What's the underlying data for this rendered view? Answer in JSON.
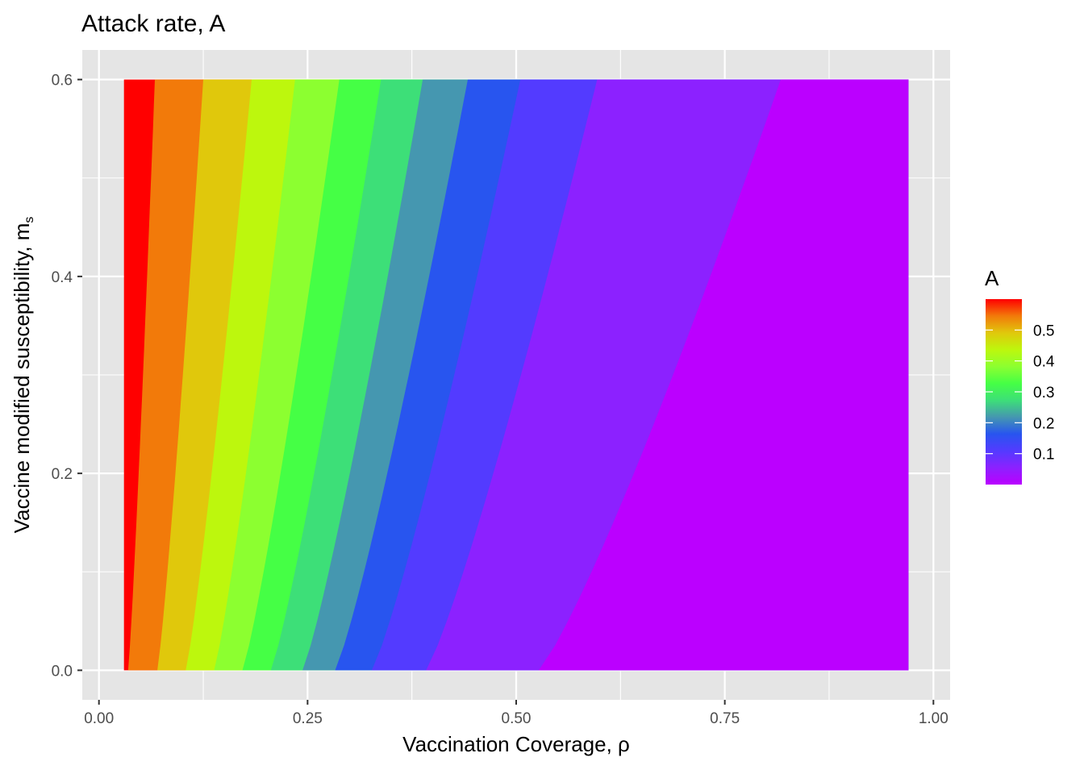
{
  "chart_data": {
    "type": "contour",
    "title": "Attack rate, A",
    "xlabel": "Vaccination Coverage,  ρ",
    "ylabel_main": "Vaccine modified susceptibility, m",
    "ylabel_sub": "s",
    "xlim": [
      -0.02,
      1.02
    ],
    "ylim": [
      -0.03,
      0.63
    ],
    "x_ticks": [
      0.0,
      0.25,
      0.5,
      0.75,
      1.0
    ],
    "x_tick_labels": [
      "0.00",
      "0.25",
      "0.50",
      "0.75",
      "1.00"
    ],
    "y_ticks": [
      0.0,
      0.2,
      0.4,
      0.6
    ],
    "y_tick_labels": [
      "0.0",
      "0.2",
      "0.4",
      "0.6"
    ],
    "grid": true,
    "data_extent": {
      "x": [
        0.03,
        0.97
      ],
      "y": [
        0.0,
        0.6
      ]
    },
    "bands": [
      {
        "color": "#ff0000",
        "x_at_y0": 0.03,
        "x_at_y06": 0.03
      },
      {
        "color": "#f27a0a",
        "x_at_y0": 0.035,
        "x_at_y06": 0.067
      },
      {
        "color": "#e0c80c",
        "x_at_y0": 0.07,
        "x_at_y06": 0.125
      },
      {
        "color": "#bdf70d",
        "x_at_y0": 0.104,
        "x_at_y06": 0.183
      },
      {
        "color": "#8cff30",
        "x_at_y0": 0.138,
        "x_at_y06": 0.235
      },
      {
        "color": "#45ff45",
        "x_at_y0": 0.172,
        "x_at_y06": 0.288
      },
      {
        "color": "#3ddf78",
        "x_at_y0": 0.206,
        "x_at_y06": 0.338
      },
      {
        "color": "#4597b0",
        "x_at_y0": 0.244,
        "x_at_y06": 0.388
      },
      {
        "color": "#2855ef",
        "x_at_y0": 0.283,
        "x_at_y06": 0.442
      },
      {
        "color": "#533bff",
        "x_at_y0": 0.327,
        "x_at_y06": 0.505
      },
      {
        "color": "#8c21ff",
        "x_at_y0": 0.392,
        "x_at_y06": 0.597
      },
      {
        "color": "#bb00ff",
        "x_at_y0": 0.527,
        "x_at_y06": 0.817
      }
    ],
    "legend": {
      "title": "A",
      "position": "right",
      "range": [
        0.0,
        0.6
      ],
      "gradient_colors": [
        "#bb00ff",
        "#8c21ff",
        "#533bff",
        "#2855ef",
        "#4597b0",
        "#3ddf78",
        "#45ff45",
        "#8cff30",
        "#bdf70d",
        "#e0c80c",
        "#f27a0a",
        "#ff0000"
      ],
      "ticks": [
        0.1,
        0.2,
        0.3,
        0.4,
        0.5
      ],
      "tick_labels": [
        "0.1",
        "0.2",
        "0.3",
        "0.4",
        "0.5"
      ]
    }
  }
}
